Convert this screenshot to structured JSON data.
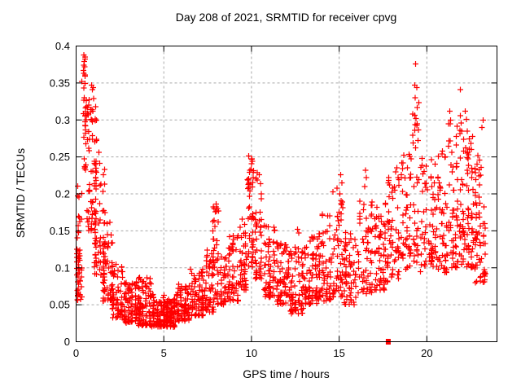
{
  "chart_data": {
    "type": "scatter",
    "title": "Day 208 of 2021, SRMTID for receiver cpvg",
    "xlabel": "GPS time / hours",
    "ylabel": "SRMTID / TECUs",
    "xlim": [
      0,
      24
    ],
    "ylim": [
      0,
      0.4
    ],
    "xticks": [
      0,
      5,
      10,
      15,
      20
    ],
    "xtick_labels": [
      "0",
      "5",
      "10",
      "15",
      "20"
    ],
    "yticks": [
      0,
      0.05,
      0.1,
      0.15,
      0.2,
      0.25,
      0.3,
      0.35,
      0.4
    ],
    "ytick_labels": [
      "0",
      "0.05",
      "0.1",
      "0.15",
      "0.2",
      "0.25",
      "0.3",
      "0.35",
      "0.4"
    ],
    "grid": true,
    "legend": "none",
    "marker": "plus",
    "marker_color": "#ff0000",
    "axis_color": "#000000",
    "grid_color": "#a8a8a8",
    "background": "#ffffff",
    "n_points_estimate": 2200,
    "seed": 97,
    "bands": [
      {
        "x0": 0.0,
        "x1": 0.35,
        "n": 40,
        "ylo": 0.055,
        "yhi": 0.125,
        "bias": 1.3
      },
      {
        "x0": 0.05,
        "x1": 0.45,
        "n": 12,
        "ylo": 0.13,
        "yhi": 0.225,
        "bias": 1.1
      },
      {
        "x0": 0.35,
        "x1": 0.65,
        "n": 22,
        "ylo": 0.23,
        "yhi": 0.33,
        "bias": 1.0
      },
      {
        "x0": 0.35,
        "x1": 0.6,
        "n": 6,
        "ylo": 0.335,
        "yhi": 0.39,
        "bias": 1.0
      },
      {
        "x0": 0.6,
        "x1": 1.2,
        "n": 62,
        "ylo": 0.15,
        "yhi": 0.325,
        "bias": 1.35
      },
      {
        "x0": 1.0,
        "x1": 1.7,
        "n": 65,
        "ylo": 0.09,
        "yhi": 0.245,
        "bias": 1.5
      },
      {
        "x0": 1.5,
        "x1": 2.1,
        "n": 55,
        "ylo": 0.055,
        "yhi": 0.165,
        "bias": 1.5
      },
      {
        "x0": 2.0,
        "x1": 2.7,
        "n": 68,
        "ylo": 0.032,
        "yhi": 0.105,
        "bias": 1.5
      },
      {
        "x0": 2.7,
        "x1": 3.5,
        "n": 85,
        "ylo": 0.025,
        "yhi": 0.082,
        "bias": 1.45
      },
      {
        "x0": 3.5,
        "x1": 4.3,
        "n": 92,
        "ylo": 0.022,
        "yhi": 0.088,
        "bias": 1.55
      },
      {
        "x0": 4.3,
        "x1": 5.1,
        "n": 92,
        "ylo": 0.02,
        "yhi": 0.064,
        "bias": 1.4
      },
      {
        "x0": 5.1,
        "x1": 5.7,
        "n": 78,
        "ylo": 0.02,
        "yhi": 0.058,
        "bias": 1.35
      },
      {
        "x0": 5.7,
        "x1": 6.5,
        "n": 82,
        "ylo": 0.028,
        "yhi": 0.078,
        "bias": 1.5
      },
      {
        "x0": 6.5,
        "x1": 7.3,
        "n": 72,
        "ylo": 0.035,
        "yhi": 0.098,
        "bias": 1.55
      },
      {
        "x0": 7.3,
        "x1": 7.9,
        "n": 52,
        "ylo": 0.04,
        "yhi": 0.125,
        "bias": 1.5
      },
      {
        "x0": 7.75,
        "x1": 8.15,
        "n": 22,
        "ylo": 0.1,
        "yhi": 0.185,
        "bias": 1.15
      },
      {
        "x0": 7.9,
        "x1": 8.6,
        "n": 46,
        "ylo": 0.05,
        "yhi": 0.118,
        "bias": 1.4
      },
      {
        "x0": 8.6,
        "x1": 9.3,
        "n": 56,
        "ylo": 0.055,
        "yhi": 0.145,
        "bias": 1.5
      },
      {
        "x0": 9.3,
        "x1": 9.75,
        "n": 42,
        "ylo": 0.07,
        "yhi": 0.18,
        "bias": 1.4
      },
      {
        "x0": 9.75,
        "x1": 10.15,
        "n": 46,
        "ylo": 0.1,
        "yhi": 0.248,
        "bias": 1.35
      },
      {
        "x0": 10.15,
        "x1": 10.65,
        "n": 44,
        "ylo": 0.085,
        "yhi": 0.23,
        "bias": 1.5
      },
      {
        "x0": 10.65,
        "x1": 11.4,
        "n": 60,
        "ylo": 0.06,
        "yhi": 0.16,
        "bias": 1.5
      },
      {
        "x0": 11.4,
        "x1": 12.2,
        "n": 70,
        "ylo": 0.05,
        "yhi": 0.14,
        "bias": 1.5
      },
      {
        "x0": 12.2,
        "x1": 13.0,
        "n": 72,
        "ylo": 0.038,
        "yhi": 0.128,
        "bias": 1.5
      },
      {
        "x0": 13.0,
        "x1": 13.8,
        "n": 70,
        "ylo": 0.05,
        "yhi": 0.145,
        "bias": 1.5
      },
      {
        "x0": 13.8,
        "x1": 14.6,
        "n": 66,
        "ylo": 0.055,
        "yhi": 0.175,
        "bias": 1.55
      },
      {
        "x0": 14.6,
        "x1": 15.25,
        "n": 52,
        "ylo": 0.06,
        "yhi": 0.21,
        "bias": 1.55
      },
      {
        "x0": 15.25,
        "x1": 16.0,
        "n": 60,
        "ylo": 0.05,
        "yhi": 0.148,
        "bias": 1.5
      },
      {
        "x0": 16.0,
        "x1": 16.95,
        "n": 62,
        "ylo": 0.065,
        "yhi": 0.215,
        "bias": 1.45
      },
      {
        "x0": 16.95,
        "x1": 17.7,
        "n": 60,
        "ylo": 0.07,
        "yhi": 0.19,
        "bias": 1.5
      },
      {
        "x0": 17.7,
        "x1": 18.5,
        "n": 56,
        "ylo": 0.08,
        "yhi": 0.23,
        "bias": 1.55
      },
      {
        "x0": 18.5,
        "x1": 19.15,
        "n": 52,
        "ylo": 0.095,
        "yhi": 0.255,
        "bias": 1.5
      },
      {
        "x0": 19.15,
        "x1": 19.6,
        "n": 30,
        "ylo": 0.1,
        "yhi": 0.325,
        "bias": 1.3
      },
      {
        "x0": 19.6,
        "x1": 20.4,
        "n": 56,
        "ylo": 0.095,
        "yhi": 0.25,
        "bias": 1.5
      },
      {
        "x0": 20.4,
        "x1": 21.2,
        "n": 60,
        "ylo": 0.09,
        "yhi": 0.255,
        "bias": 1.5
      },
      {
        "x0": 21.2,
        "x1": 22.0,
        "n": 66,
        "ylo": 0.1,
        "yhi": 0.3,
        "bias": 1.5
      },
      {
        "x0": 22.0,
        "x1": 22.7,
        "n": 72,
        "ylo": 0.1,
        "yhi": 0.285,
        "bias": 1.4
      },
      {
        "x0": 22.7,
        "x1": 23.4,
        "n": 62,
        "ylo": 0.08,
        "yhi": 0.24,
        "bias": 1.45
      }
    ],
    "extra_points": [
      [
        0.45,
        0.388
      ],
      [
        0.5,
        0.385
      ],
      [
        0.44,
        0.374
      ],
      [
        0.48,
        0.372
      ],
      [
        0.45,
        0.363
      ],
      [
        0.5,
        0.361
      ],
      [
        0.32,
        0.352
      ],
      [
        0.88,
        0.347
      ],
      [
        0.97,
        0.344
      ],
      [
        0.92,
        0.341
      ],
      [
        1.0,
        0.329
      ],
      [
        0.75,
        0.327
      ],
      [
        0.58,
        0.318
      ],
      [
        0.95,
        0.312
      ],
      [
        0.7,
        0.307
      ],
      [
        1.15,
        0.272
      ],
      [
        1.3,
        0.256
      ],
      [
        7.98,
        0.186
      ],
      [
        8.05,
        0.18
      ],
      [
        7.93,
        0.176
      ],
      [
        9.85,
        0.251
      ],
      [
        10.0,
        0.247
      ],
      [
        10.05,
        0.244
      ],
      [
        9.9,
        0.232
      ],
      [
        10.1,
        0.229
      ],
      [
        10.45,
        0.226
      ],
      [
        10.52,
        0.214
      ],
      [
        12.62,
        0.152
      ],
      [
        12.7,
        0.147
      ],
      [
        15.08,
        0.226
      ],
      [
        15.15,
        0.215
      ],
      [
        15.05,
        0.2
      ],
      [
        16.5,
        0.232
      ],
      [
        16.55,
        0.222
      ],
      [
        16.45,
        0.21
      ],
      [
        17.82,
        0.222
      ],
      [
        17.88,
        0.212
      ],
      [
        18.3,
        0.235
      ],
      [
        18.35,
        0.222
      ],
      [
        19.35,
        0.376
      ],
      [
        19.3,
        0.347
      ],
      [
        19.42,
        0.344
      ],
      [
        19.33,
        0.33
      ],
      [
        19.45,
        0.317
      ],
      [
        19.38,
        0.302
      ],
      [
        19.44,
        0.295
      ],
      [
        19.3,
        0.286
      ],
      [
        19.5,
        0.272
      ],
      [
        19.36,
        0.262
      ],
      [
        20.9,
        0.258
      ],
      [
        21.05,
        0.25
      ],
      [
        21.3,
        0.312
      ],
      [
        21.36,
        0.3
      ],
      [
        21.32,
        0.295
      ],
      [
        21.42,
        0.256
      ],
      [
        21.9,
        0.341
      ],
      [
        21.92,
        0.306
      ],
      [
        21.96,
        0.296
      ],
      [
        21.88,
        0.286
      ],
      [
        22.2,
        0.312
      ],
      [
        22.26,
        0.301
      ],
      [
        22.22,
        0.262
      ],
      [
        22.32,
        0.256
      ],
      [
        22.9,
        0.252
      ],
      [
        23.0,
        0.246
      ],
      [
        22.86,
        0.24
      ],
      [
        23.1,
        0.236
      ],
      [
        23.2,
        0.3
      ],
      [
        23.15,
        0.29
      ]
    ],
    "special_points": [
      {
        "x": 17.8,
        "y": 0,
        "marker": "filled-square",
        "color": "#ff0000"
      }
    ]
  }
}
